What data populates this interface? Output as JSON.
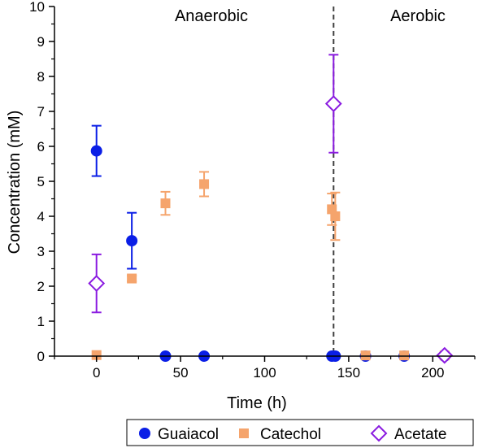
{
  "chart_data": {
    "type": "scatter",
    "xlabel": "Time (h)",
    "ylabel": "Concentration (mM)",
    "xlim": [
      -25,
      225
    ],
    "ylim": [
      0,
      10
    ],
    "xticks": [
      0,
      50,
      100,
      150,
      200
    ],
    "yticks": [
      0,
      1,
      2,
      3,
      4,
      5,
      6,
      7,
      8,
      9,
      10
    ],
    "x_tick_labels": [
      "0",
      "50",
      "100",
      "150",
      "200"
    ],
    "y_tick_labels": [
      "0",
      "1",
      "2",
      "3",
      "4",
      "5",
      "6",
      "7",
      "8",
      "9",
      "10"
    ],
    "grid": false,
    "legend_position": "bottom",
    "annotations": [
      {
        "text": "Anaerobic",
        "x": 60,
        "y": 9.6
      },
      {
        "text": "Aerobic",
        "x": 182,
        "y": 9.6
      }
    ],
    "vline": {
      "x": 141,
      "style": "dashed",
      "color": "#404040"
    },
    "series": [
      {
        "name": "Guaiacol",
        "marker": "circle",
        "color": "#0a1ee6",
        "points": [
          {
            "x": 0,
            "y": 5.87,
            "err": 0.72
          },
          {
            "x": 21,
            "y": 3.3,
            "err": 0.8
          },
          {
            "x": 41,
            "y": 0,
            "err": 0
          },
          {
            "x": 64,
            "y": 0,
            "err": 0
          },
          {
            "x": 140,
            "y": 0,
            "err": 0
          },
          {
            "x": 142,
            "y": 0,
            "err": 0
          },
          {
            "x": 160,
            "y": 0,
            "err": 0
          },
          {
            "x": 183,
            "y": 0,
            "err": 0
          },
          {
            "x": 207,
            "y": 0,
            "err": 0
          }
        ]
      },
      {
        "name": "Catechol",
        "marker": "square",
        "color": "#f5a46c",
        "points": [
          {
            "x": 0,
            "y": 0.03,
            "err": 0
          },
          {
            "x": 21,
            "y": 2.22,
            "err": 0.08
          },
          {
            "x": 41,
            "y": 4.37,
            "err": 0.33
          },
          {
            "x": 64,
            "y": 4.92,
            "err": 0.35
          },
          {
            "x": 140,
            "y": 4.2,
            "err": 0.45
          },
          {
            "x": 142,
            "y": 4.0,
            "err": 0.68
          },
          {
            "x": 160,
            "y": 0.02,
            "err": 0
          },
          {
            "x": 183,
            "y": 0.02,
            "err": 0
          },
          {
            "x": 207,
            "y": 0.02,
            "err": 0
          }
        ]
      },
      {
        "name": "Acetate",
        "marker": "diamond-open",
        "color": "#8a1be0",
        "points": [
          {
            "x": 0,
            "y": 2.08,
            "err": 0.83
          },
          {
            "x": 141,
            "y": 7.22,
            "err": 1.4
          },
          {
            "x": 207,
            "y": 0.02,
            "err": 0
          }
        ]
      }
    ]
  }
}
